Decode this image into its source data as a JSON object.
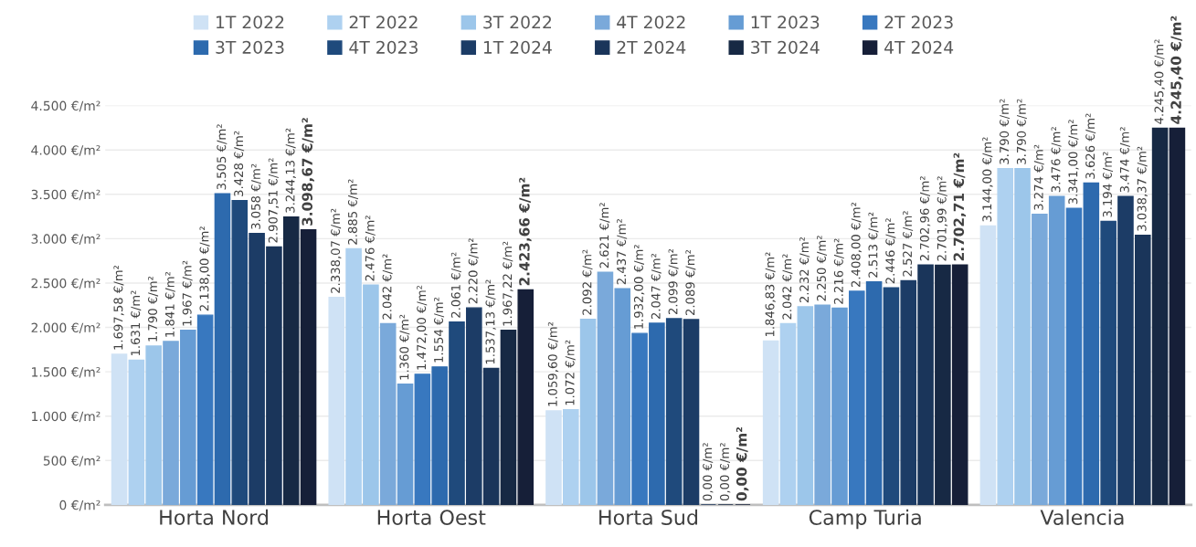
{
  "chart_data": {
    "type": "bar",
    "categories": [
      "Horta Nord",
      "Horta Oest",
      "Horta Sud",
      "Camp Turia",
      "Valencia"
    ],
    "ylim": [
      0,
      4500
    ],
    "yticks": [
      {
        "value": 0,
        "label": "0 €/m²"
      },
      {
        "value": 500,
        "label": "500 €/m²"
      },
      {
        "value": 1000,
        "label": "1.000 €/m²"
      },
      {
        "value": 1500,
        "label": "1.500 €/m²"
      },
      {
        "value": 2000,
        "label": "2.000 €/m²"
      },
      {
        "value": 2500,
        "label": "2.500 €/m²"
      },
      {
        "value": 3000,
        "label": "3.000 €/m²"
      },
      {
        "value": 3500,
        "label": "3.500 €/m²"
      },
      {
        "value": 4000,
        "label": "4.000 €/m²"
      },
      {
        "value": 4500,
        "label": "4.500 €/m²"
      }
    ],
    "grid": "y",
    "legend": "top",
    "series": [
      {
        "name": "1T 2022",
        "color": "#cfe2f5",
        "values": [
          1697.58,
          2338.07,
          1059.6,
          1846.83,
          3144.0
        ],
        "value_labels": [
          "1.697,58 €/m²",
          "2.338,07 €/m²",
          "1.059,60 €/m²",
          "1.846,83 €/m²",
          "3.144,00 €/m²"
        ]
      },
      {
        "name": "2T 2022",
        "color": "#aed1f0",
        "values": [
          1631,
          2885,
          1072,
          2042,
          3790
        ],
        "value_labels": [
          "1.631 €/m²",
          "2.885 €/m²",
          "1.072 €/m²",
          "2.042 €/m²",
          "3.790 €/m²"
        ]
      },
      {
        "name": "3T 2022",
        "color": "#9cc6ea",
        "values": [
          1790,
          2476,
          2092,
          2232,
          3790
        ],
        "value_labels": [
          "1.790 €/m²",
          "2.476 €/m²",
          "2.092 €/m²",
          "2.232 €/m²",
          "3.790 €/m²"
        ]
      },
      {
        "name": "4T 2022",
        "color": "#7aa9da",
        "values": [
          1841,
          2042,
          2621,
          2250,
          3274
        ],
        "value_labels": [
          "1.841 €/m²",
          "2.042 €/m²",
          "2.621 €/m²",
          "2.250 €/m²",
          "3.274 €/m²"
        ]
      },
      {
        "name": "1T 2023",
        "color": "#669cd4",
        "values": [
          1967,
          1360,
          2437,
          2216,
          3476
        ],
        "value_labels": [
          "1.967 €/m²",
          "1.360 €/m²",
          "2.437 €/m²",
          "2.216 €/m²",
          "3.476 €/m²"
        ]
      },
      {
        "name": "2T 2023",
        "color": "#3878bf",
        "values": [
          2138.0,
          1472.0,
          1932.0,
          2408.0,
          3341.0
        ],
        "value_labels": [
          "2.138,00 €/m²",
          "1.472,00 €/m²",
          "1.932,00 €/m²",
          "2.408,00 €/m²",
          "3.341,00 €/m²"
        ]
      },
      {
        "name": "3T 2023",
        "color": "#2d6aae",
        "values": [
          3505,
          1554,
          2047,
          2513,
          3626
        ],
        "value_labels": [
          "3.505 €/m²",
          "1.554 €/m²",
          "2.047 €/m²",
          "2.513 €/m²",
          "3.626 €/m²"
        ]
      },
      {
        "name": "4T 2023",
        "color": "#1f4a7c",
        "values": [
          3428,
          2061,
          2099,
          2446,
          3194
        ],
        "value_labels": [
          "3.428 €/m²",
          "2.061 €/m²",
          "2.099 €/m²",
          "2.446 €/m²",
          "3.194 €/m²"
        ]
      },
      {
        "name": "1T 2024",
        "color": "#1c3c66",
        "values": [
          3058,
          2220,
          2089,
          2527,
          3474
        ],
        "value_labels": [
          "3.058 €/m²",
          "2.220 €/m²",
          "2.089 €/m²",
          "2.527 €/m²",
          "3.474 €/m²"
        ]
      },
      {
        "name": "2T 2024",
        "color": "#1a355a",
        "values": [
          2907.51,
          1537.13,
          0,
          2702.96,
          3038.37
        ],
        "value_labels": [
          "2.907,51 €/m²",
          "1.537,13 €/m²",
          "0,00 €/m²",
          "2.702,96 €/m²",
          "3.038,37 €/m²"
        ]
      },
      {
        "name": "3T 2024",
        "color": "#172944",
        "values": [
          3244.13,
          1967.22,
          0,
          2701.99,
          4245.4
        ],
        "value_labels": [
          "3.244,13 €/m²",
          "1.967,22 €/m²",
          "0,00 €/m²",
          "2.701,99 €/m²",
          "4.245,40 €/m²"
        ]
      },
      {
        "name": "4T 2024",
        "color": "#161f38",
        "values": [
          3098.67,
          2423.66,
          0,
          2702.71,
          4245.4
        ],
        "value_labels": [
          "3.098,67 €/m²",
          "2.423,66 €/m²",
          "0,00 €/m²",
          "2.702,71 €/m²",
          "4.245,40 €/m²"
        ]
      }
    ]
  }
}
